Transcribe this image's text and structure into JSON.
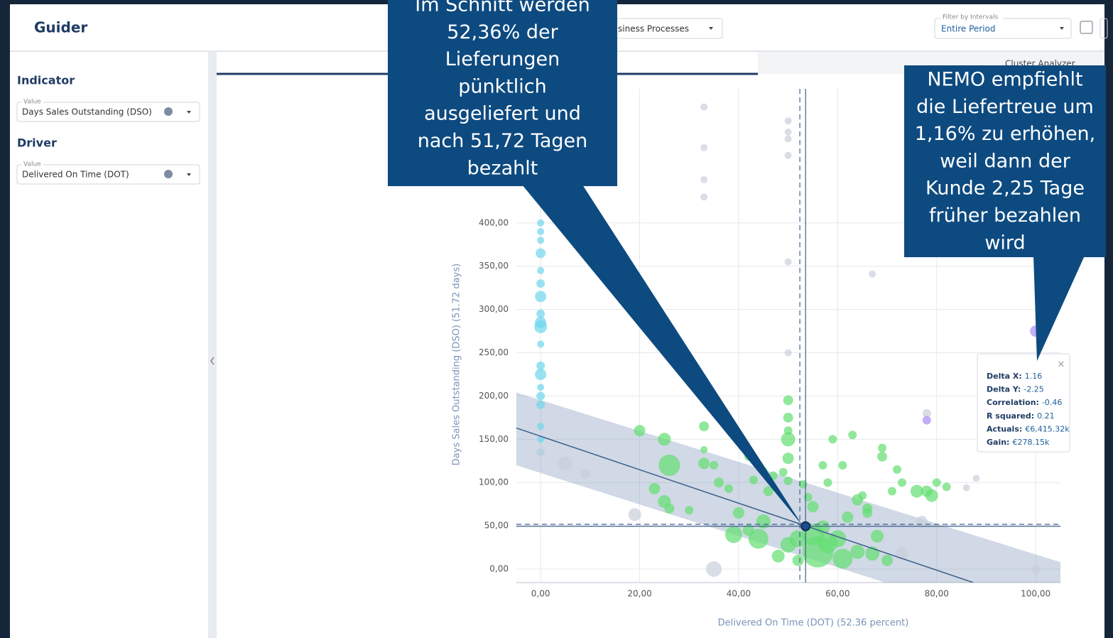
{
  "header": {
    "title": "Guider",
    "process_select": "siness Processes",
    "filter": {
      "label": "Filter by Intervals",
      "value": "Entire Period"
    }
  },
  "sidebar": {
    "indicator": {
      "heading": "Indicator",
      "field_label": "Value",
      "value": "Days Sales Outstanding (DSO)"
    },
    "driver": {
      "heading": "Driver",
      "field_label": "Value",
      "value": "Delivered On Time (DOT)"
    }
  },
  "toolbar": {
    "cluster_analyzer": "Cluster Analyzer"
  },
  "chart_data": {
    "type": "scatter",
    "xlabel": "Delivered On Time (DOT) (52.36 percent)",
    "ylabel": "Days Sales Outstanding (DSO) (51.72 days)",
    "xlim": [
      -4.9,
      105
    ],
    "ylim": [
      -15.6,
      555
    ],
    "xticks": [
      {
        "value": 0,
        "label": "0,00"
      },
      {
        "value": 20,
        "label": "20,00"
      },
      {
        "value": 40,
        "label": "40,00"
      },
      {
        "value": 60,
        "label": "60,00"
      },
      {
        "value": 80,
        "label": "80,00"
      },
      {
        "value": 100,
        "label": "100,00"
      }
    ],
    "yticks": [
      {
        "value": 0,
        "label": "0,00"
      },
      {
        "value": 50,
        "label": "50,00"
      },
      {
        "value": 100,
        "label": "100,00"
      },
      {
        "value": 150,
        "label": "150,00"
      },
      {
        "value": 200,
        "label": "200,00"
      },
      {
        "value": 250,
        "label": "250,00"
      },
      {
        "value": 300,
        "label": "300,00"
      },
      {
        "value": 350,
        "label": "350,00"
      },
      {
        "value": 400,
        "label": "400,00"
      }
    ],
    "grid": true,
    "series": [
      {
        "color": "#6fd6ec",
        "x": [
          0,
          0,
          0,
          0,
          0,
          0,
          0,
          0,
          0,
          0,
          0,
          0,
          0,
          0,
          0,
          0,
          0,
          0,
          0
        ],
        "y": [
          400,
          390,
          380,
          365,
          345,
          330,
          315,
          295,
          285,
          280,
          260,
          235,
          225,
          210,
          200,
          190,
          165,
          150,
          135
        ],
        "sizes": [
          5,
          5,
          5,
          7,
          5,
          6,
          8,
          6,
          8,
          9,
          5,
          6,
          8,
          5,
          6,
          6,
          5,
          5,
          5
        ]
      },
      {
        "color": "#c9cfdc",
        "x": [
          0,
          33,
          33,
          33,
          33,
          50,
          50,
          50,
          50,
          50,
          50,
          67,
          5,
          9,
          19,
          35,
          77,
          73,
          100,
          86,
          88,
          78
        ],
        "y": [
          135,
          534,
          487,
          450,
          430,
          518,
          505,
          497,
          478,
          355,
          250,
          341,
          122,
          110,
          63,
          0,
          55,
          18,
          0,
          94,
          105,
          180
        ],
        "sizes": [
          6,
          5,
          5,
          5,
          5,
          5,
          5,
          5,
          5,
          5,
          5,
          5,
          10,
          7,
          9,
          11,
          8,
          9,
          6,
          5,
          5,
          6
        ]
      },
      {
        "color": "#a88cf2",
        "x": [
          100,
          78
        ],
        "y": [
          275,
          172
        ],
        "sizes": [
          8,
          6
        ]
      },
      {
        "color": "#62de70",
        "x": [
          20,
          25,
          26,
          33,
          33,
          33,
          23,
          25,
          26,
          30,
          36,
          38,
          40,
          42,
          43,
          45,
          46,
          47,
          49,
          50,
          50,
          50,
          50,
          50,
          50,
          53,
          54,
          55,
          57,
          58,
          56,
          55,
          52,
          45,
          42,
          39,
          44,
          50,
          48,
          60,
          61,
          62,
          64,
          66,
          68,
          67,
          70,
          69,
          69,
          72,
          73,
          71,
          76,
          78,
          80,
          82,
          79,
          59,
          63,
          57,
          61,
          58,
          65,
          66,
          52,
          64,
          35
        ],
        "y": [
          160,
          150,
          120,
          165,
          138,
          122,
          93,
          78,
          70,
          68,
          100,
          93,
          65,
          130,
          103,
          113,
          90,
          108,
          112,
          195,
          175,
          160,
          150,
          128,
          102,
          98,
          83,
          72,
          48,
          30,
          20,
          40,
          35,
          55,
          45,
          40,
          35,
          28,
          15,
          35,
          12,
          60,
          80,
          65,
          38,
          18,
          10,
          130,
          140,
          115,
          100,
          90,
          90,
          90,
          100,
          95,
          85,
          150,
          155,
          120,
          120,
          100,
          85,
          70,
          10,
          20,
          120
        ],
        "sizes": [
          8,
          9,
          15,
          7,
          5,
          8,
          8,
          9,
          7,
          6,
          7,
          6,
          8,
          6,
          6,
          6,
          7,
          6,
          6,
          7,
          7,
          6,
          10,
          8,
          6,
          6,
          6,
          8,
          10,
          14,
          22,
          15,
          12,
          10,
          8,
          12,
          14,
          11,
          9,
          12,
          14,
          8,
          8,
          7,
          9,
          10,
          8,
          7,
          6,
          6,
          6,
          6,
          9,
          8,
          6,
          6,
          9,
          6,
          6,
          6,
          6,
          6,
          6,
          7,
          8,
          10,
          6
        ]
      }
    ],
    "trend": {
      "x": [
        -4.9,
        87.4
      ],
      "y": [
        163,
        -15.6
      ]
    },
    "band": {
      "x": [
        -4.9,
        105
      ],
      "upper": [
        204,
        8
      ],
      "lower": [
        120,
        -80
      ]
    },
    "mean_x": 52.36,
    "mean_y": 51.72,
    "target_x": 53.52,
    "target_y": 49.47,
    "tooltip": [
      {
        "label": "Delta X:",
        "value": "1.16"
      },
      {
        "label": "Delta Y:",
        "value": "-2.25"
      },
      {
        "label": "Correlation:",
        "value": "-0.46"
      },
      {
        "label": "R squared:",
        "value": "0.21"
      },
      {
        "label": "Actuals:",
        "value": "€6,415.32k"
      },
      {
        "label": "Gain:",
        "value": "€278.15k"
      }
    ]
  },
  "callouts": [
    {
      "lines": [
        "Im Schnitt werden",
        "52,36% der",
        "Lieferungen",
        "pünktlich",
        "ausgeliefert und",
        "nach 51,72 Tagen",
        "bezahlt"
      ]
    },
    {
      "lines": [
        "NEMO empfiehlt",
        "die Liefertreue um",
        "1,16% zu erhöhen,",
        "weil dann der",
        "Kunde 2,25 Tage",
        "früher bezahlen",
        "wird"
      ]
    }
  ]
}
